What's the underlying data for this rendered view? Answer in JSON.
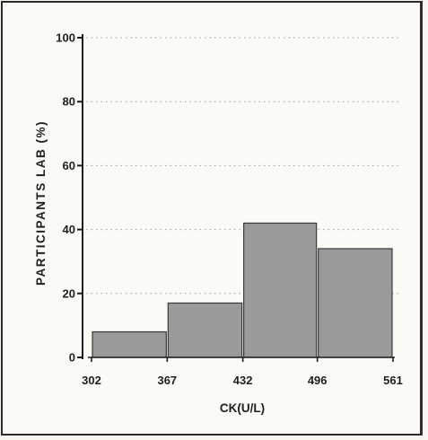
{
  "chart_data": {
    "type": "bar",
    "title": "",
    "xlabel": "CK(U/L)",
    "ylabel": "PARTICIPANTS LAB (%)",
    "x_bin_edges": [
      "302",
      "367",
      "432",
      "496",
      "561"
    ],
    "categories": [
      "302-367",
      "367-432",
      "432-496",
      "496-561"
    ],
    "values": [
      8,
      17,
      42,
      34
    ],
    "ylim": [
      0,
      100
    ],
    "yticks": [
      "0",
      "20",
      "40",
      "60",
      "80",
      "100"
    ],
    "grid": true,
    "grid_style": "dotted horizontal",
    "legend": "none",
    "bar_color": "#9a9a9a",
    "bar_edge_color": "#3a3a3a"
  }
}
